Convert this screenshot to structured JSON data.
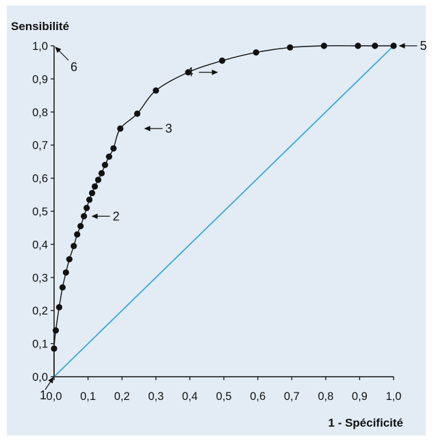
{
  "chart_data": {
    "type": "scatter",
    "title": "",
    "ylabel": "Sensibilité",
    "xlabel": "1 - Spécificité",
    "xlim": [
      0,
      1
    ],
    "ylim": [
      0,
      1
    ],
    "x_ticks": [
      "0,0",
      "0,1",
      "0,2",
      "0,3",
      "0,4",
      "0,5",
      "0,6",
      "0,7",
      "0,8",
      "0,9",
      "1,0"
    ],
    "y_ticks": [
      "0,0",
      "0,1",
      "0,2",
      "0,3",
      "0,4",
      "0,5",
      "0,6",
      "0,7",
      "0,8",
      "0,9",
      "1,0"
    ],
    "grid": false,
    "legend": "none",
    "colors": {
      "curve": "#111111",
      "diagonal": "#3aa6dc",
      "background": "#e3ecf4"
    },
    "series": [
      {
        "type": "points",
        "x": [
          0.0,
          0.005,
          0.015,
          0.025,
          0.035,
          0.045,
          0.058,
          0.068,
          0.078,
          0.088,
          0.096,
          0.104,
          0.112,
          0.12,
          0.13,
          0.14,
          0.15,
          0.162,
          0.175,
          0.195,
          0.245,
          0.3,
          0.395,
          0.495,
          0.595,
          0.695,
          0.795,
          0.895,
          0.945,
          1.0
        ],
        "y": [
          0.085,
          0.14,
          0.21,
          0.27,
          0.315,
          0.355,
          0.395,
          0.43,
          0.455,
          0.485,
          0.51,
          0.535,
          0.555,
          0.575,
          0.595,
          0.615,
          0.64,
          0.665,
          0.69,
          0.75,
          0.795,
          0.865,
          0.92,
          0.955,
          0.98,
          0.995,
          1.0,
          1.0,
          1.0,
          1.0
        ]
      },
      {
        "type": "smooth-curve",
        "x": [
          0.0,
          0.005,
          0.015,
          0.025,
          0.035,
          0.045,
          0.058,
          0.068,
          0.078,
          0.088,
          0.096,
          0.104,
          0.112,
          0.12,
          0.13,
          0.14,
          0.15,
          0.162,
          0.175,
          0.195,
          0.245,
          0.3,
          0.395,
          0.495,
          0.595,
          0.695,
          0.795,
          0.895,
          0.945,
          1.0
        ],
        "y": [
          0.085,
          0.14,
          0.21,
          0.27,
          0.315,
          0.355,
          0.395,
          0.43,
          0.455,
          0.485,
          0.51,
          0.535,
          0.555,
          0.575,
          0.595,
          0.615,
          0.64,
          0.665,
          0.69,
          0.75,
          0.795,
          0.865,
          0.92,
          0.955,
          0.98,
          0.995,
          1.0,
          1.0,
          1.0,
          1.0
        ]
      },
      {
        "type": "diagonal",
        "x": [
          0,
          1
        ],
        "y": [
          0,
          1
        ]
      }
    ],
    "annotations": [
      {
        "label": "1",
        "at": [
          0.0,
          0.0
        ],
        "arrow": "from-lower-left"
      },
      {
        "label": "2",
        "at": [
          0.1,
          0.485
        ],
        "arrow": "from-right"
      },
      {
        "label": "3",
        "at": [
          0.255,
          0.75
        ],
        "arrow": "from-right"
      },
      {
        "label": "4",
        "at": [
          0.495,
          0.92
        ],
        "arrow": "from-left"
      },
      {
        "label": "5",
        "at": [
          1.005,
          1.0
        ],
        "arrow": "from-right"
      },
      {
        "label": "6",
        "at": [
          0.0,
          1.0
        ],
        "arrow": "from-lower-right"
      }
    ]
  }
}
